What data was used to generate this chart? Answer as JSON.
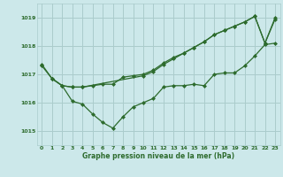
{
  "xlabel": "Graphe pression niveau de la mer (hPa)",
  "bg_color": "#cce8ea",
  "grid_color": "#aacccc",
  "line_color": "#2d6b2d",
  "marker": "D",
  "markersize": 2.0,
  "linewidth": 0.9,
  "ylim": [
    1014.5,
    1019.5
  ],
  "xlim": [
    -0.5,
    23.5
  ],
  "yticks": [
    1015,
    1016,
    1017,
    1018,
    1019
  ],
  "xticks": [
    0,
    1,
    2,
    3,
    4,
    5,
    6,
    7,
    8,
    9,
    10,
    11,
    12,
    13,
    14,
    15,
    16,
    17,
    18,
    19,
    20,
    21,
    22,
    23
  ],
  "line1_x": [
    0,
    1,
    2,
    3,
    4,
    5,
    6,
    7,
    8,
    9,
    10,
    11,
    12,
    13,
    14,
    15,
    16,
    17,
    18,
    19,
    20,
    21,
    22,
    23
  ],
  "line1_y": [
    1017.35,
    1016.85,
    1016.6,
    1016.05,
    1015.95,
    1015.6,
    1015.3,
    1015.1,
    1015.5,
    1015.85,
    1016.0,
    1016.15,
    1016.55,
    1016.6,
    1016.6,
    1016.65,
    1016.6,
    1017.0,
    1017.05,
    1017.05,
    1017.3,
    1017.65,
    1018.05,
    1018.1
  ],
  "line2_x": [
    0,
    1,
    2,
    3,
    4,
    5,
    6,
    7,
    8,
    9,
    10,
    11,
    12,
    13,
    14,
    15,
    16,
    17,
    18,
    19,
    20,
    21,
    22,
    23
  ],
  "line2_y": [
    1017.3,
    1016.85,
    1016.6,
    1016.55,
    1016.55,
    1016.6,
    1016.65,
    1016.65,
    1016.9,
    1016.95,
    1017.0,
    1017.15,
    1017.4,
    1017.6,
    1017.75,
    1017.95,
    1018.15,
    1018.4,
    1018.55,
    1018.7,
    1018.85,
    1019.05,
    1018.1,
    1019.0
  ],
  "line3_x": [
    1,
    2,
    3,
    4,
    10,
    11,
    12,
    13,
    14,
    15,
    16,
    17,
    18,
    19,
    20,
    21,
    22,
    23
  ],
  "line3_y": [
    1016.85,
    1016.6,
    1016.55,
    1016.55,
    1016.95,
    1017.1,
    1017.35,
    1017.55,
    1017.75,
    1017.95,
    1018.15,
    1018.4,
    1018.55,
    1018.7,
    1018.85,
    1019.05,
    1018.1,
    1018.95
  ]
}
